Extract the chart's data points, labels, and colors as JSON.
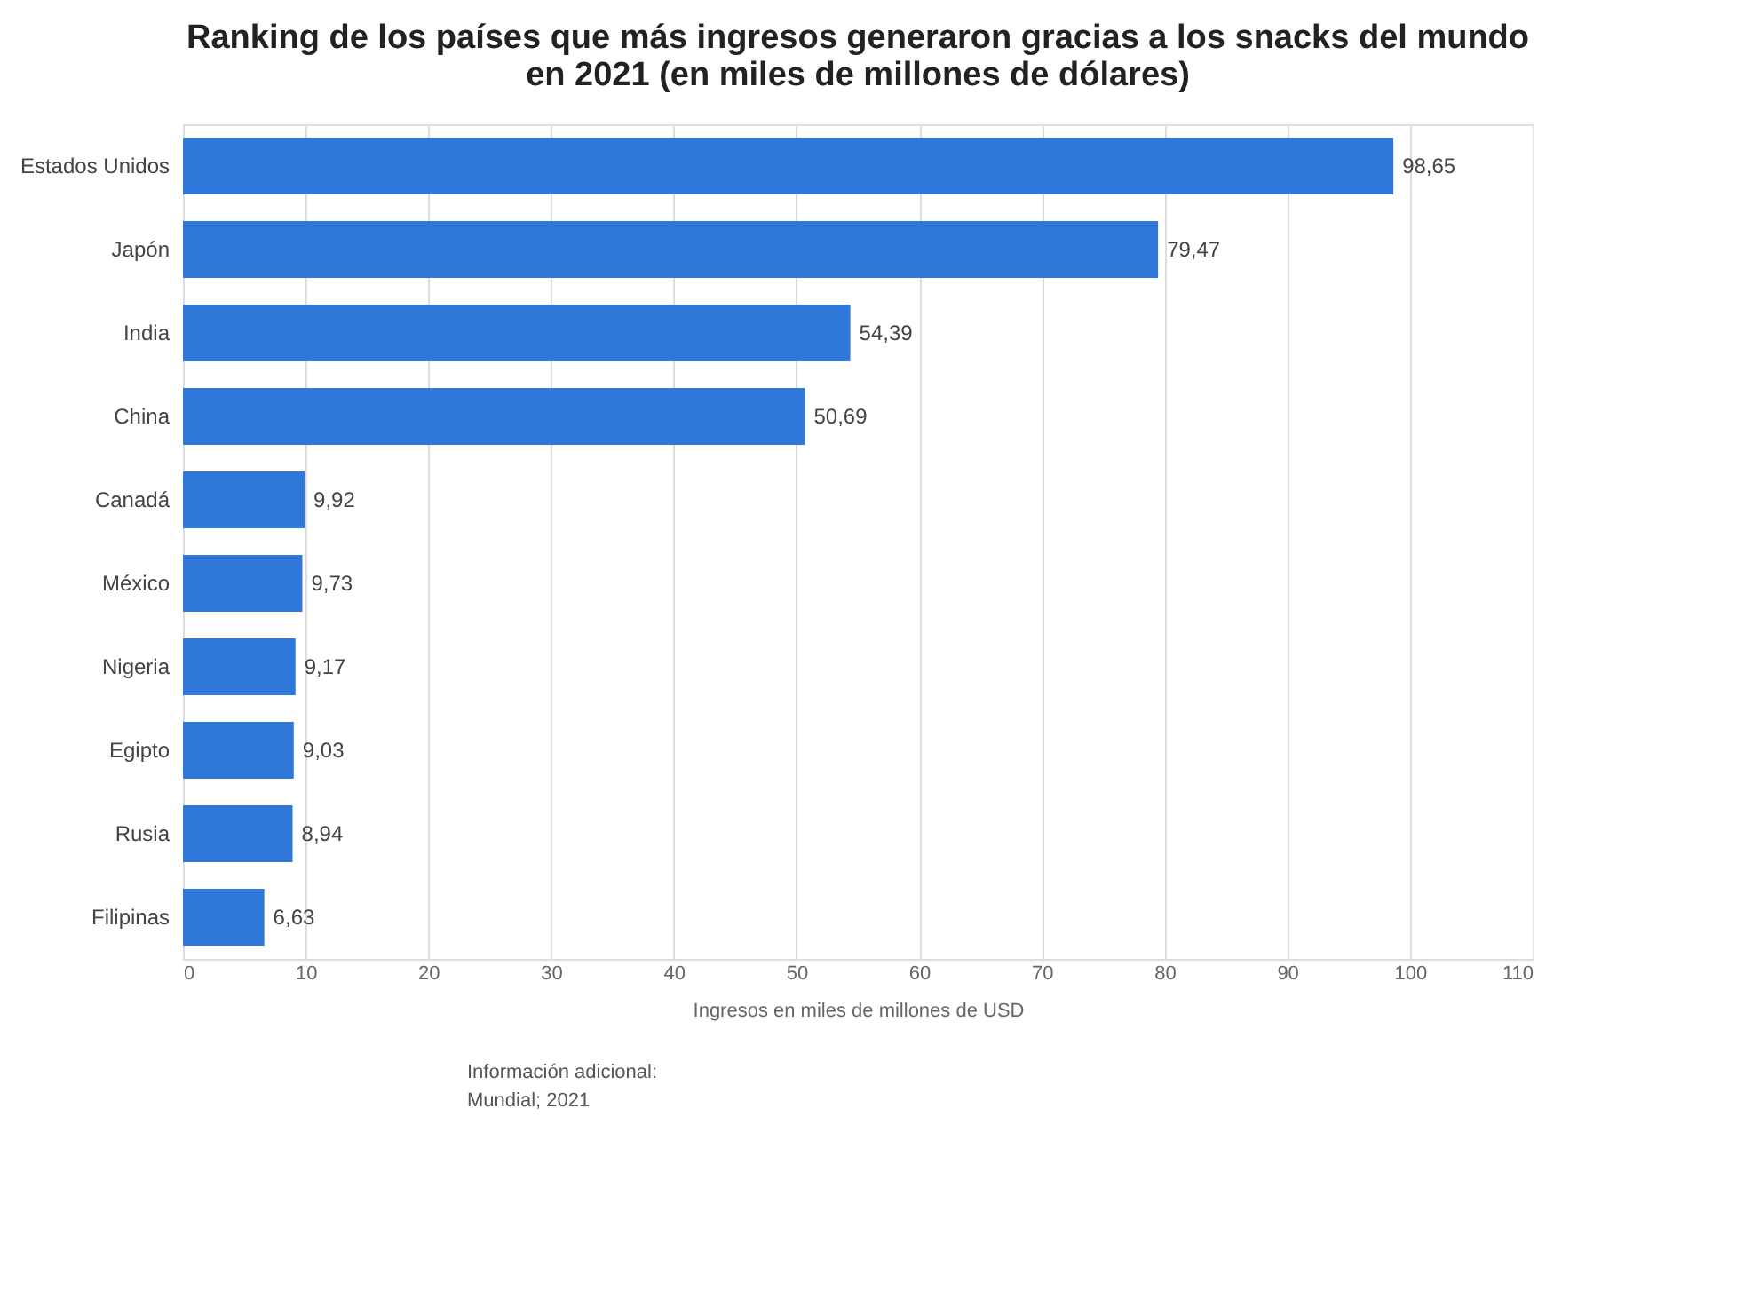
{
  "chart_data": {
    "type": "bar",
    "orientation": "horizontal",
    "title": [
      "Ranking de los países que más ingresos generaron gracias a los snacks del mundo",
      "en 2021 (en miles de millones de dólares)"
    ],
    "xlabel": "Ingresos en miles de millones de USD",
    "categories": [
      "Estados Unidos",
      "Japón",
      "India",
      "China",
      "Canadá",
      "México",
      "Nigeria",
      "Egipto",
      "Rusia",
      "Filipinas"
    ],
    "values": [
      98.65,
      79.47,
      54.39,
      50.69,
      9.92,
      9.73,
      9.17,
      9.03,
      8.94,
      6.63
    ],
    "value_labels": [
      "98,65",
      "79,47",
      "54,39",
      "50,69",
      "9,92",
      "9,73",
      "9,17",
      "9,03",
      "8,94",
      "6,63"
    ],
    "color": "#2f77d9",
    "xlim": [
      0,
      110
    ],
    "xticks": [
      0,
      10,
      20,
      30,
      40,
      50,
      60,
      70,
      80,
      90,
      100,
      110
    ],
    "grid": "x",
    "annotations": [
      "Información adicional:",
      "Mundial; 2021"
    ]
  }
}
